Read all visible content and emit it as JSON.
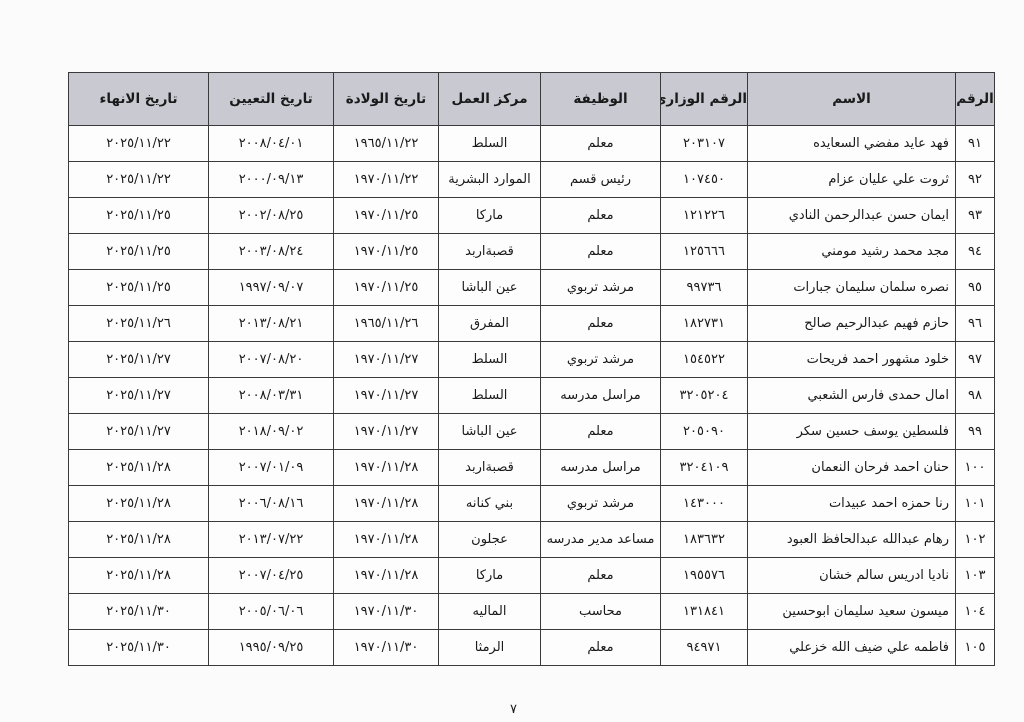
{
  "table": {
    "headers": [
      "الرقم",
      "الاسم",
      "الرقم الوزاري",
      "الوظيفة",
      "مركز العمل",
      "تاريخ الولادة",
      "تاريخ التعيين",
      "تاريخ الانهاء"
    ],
    "rows": [
      [
        "٩١",
        "فهد عايد مفضي السعايده",
        "٢٠٣١٠٧",
        "معلم",
        "السلط",
        "١٩٦٥/١١/٢٢",
        "٢٠٠٨/٠٤/٠١",
        "٢٠٢٥/١١/٢٢"
      ],
      [
        "٩٢",
        "ثروت علي عليان عزام",
        "١٠٧٤٥٠",
        "رئيس قسم",
        "الموارد البشرية",
        "١٩٧٠/١١/٢٢",
        "٢٠٠٠/٠٩/١٣",
        "٢٠٢٥/١١/٢٢"
      ],
      [
        "٩٣",
        "ايمان حسن عبدالرحمن النادي",
        "١٢١٢٢٦",
        "معلم",
        "ماركا",
        "١٩٧٠/١١/٢٥",
        "٢٠٠٢/٠٨/٢٥",
        "٢٠٢٥/١١/٢٥"
      ],
      [
        "٩٤",
        "مجد محمد رشيد مومني",
        "١٢٥٦٦٦",
        "معلم",
        "قصبةاربد",
        "١٩٧٠/١١/٢٥",
        "٢٠٠٣/٠٨/٢٤",
        "٢٠٢٥/١١/٢٥"
      ],
      [
        "٩٥",
        "نصره سلمان سليمان جبارات",
        "٩٩٧٣٦",
        "مرشد تربوي",
        "عين الباشا",
        "١٩٧٠/١١/٢٥",
        "١٩٩٧/٠٩/٠٧",
        "٢٠٢٥/١١/٢٥"
      ],
      [
        "٩٦",
        "حازم فهيم عبدالرحيم صالح",
        "١٨٢٧٣١",
        "معلم",
        "المفرق",
        "١٩٦٥/١١/٢٦",
        "٢٠١٣/٠٨/٢١",
        "٢٠٢٥/١١/٢٦"
      ],
      [
        "٩٧",
        "خلود مشهور احمد فريحات",
        "١٥٤٥٢٢",
        "مرشد تربوي",
        "السلط",
        "١٩٧٠/١١/٢٧",
        "٢٠٠٧/٠٨/٢٠",
        "٢٠٢٥/١١/٢٧"
      ],
      [
        "٩٨",
        "امال حمدى فارس الشعبي",
        "٣٢٠٥٢٠٤",
        "مراسل مدرسه",
        "السلط",
        "١٩٧٠/١١/٢٧",
        "٢٠٠٨/٠٣/٣١",
        "٢٠٢٥/١١/٢٧"
      ],
      [
        "٩٩",
        "فلسطين يوسف حسين سكر",
        "٢٠٥٠٩٠",
        "معلم",
        "عين الباشا",
        "١٩٧٠/١١/٢٧",
        "٢٠١٨/٠٩/٠٢",
        "٢٠٢٥/١١/٢٧"
      ],
      [
        "١٠٠",
        "حنان احمد فرحان النعمان",
        "٣٢٠٤١٠٩",
        "مراسل مدرسه",
        "قصبةاربد",
        "١٩٧٠/١١/٢٨",
        "٢٠٠٧/٠١/٠٩",
        "٢٠٢٥/١١/٢٨"
      ],
      [
        "١٠١",
        "رنا حمزه احمد عبيدات",
        "١٤٣٠٠٠",
        "مرشد تربوي",
        "بني كنانه",
        "١٩٧٠/١١/٢٨",
        "٢٠٠٦/٠٨/١٦",
        "٢٠٢٥/١١/٢٨"
      ],
      [
        "١٠٢",
        "رهام عبدالله عبدالحافظ العبود",
        "١٨٣٦٣٢",
        "مساعد مدير مدرسه",
        "عجلون",
        "١٩٧٠/١١/٢٨",
        "٢٠١٣/٠٧/٢٢",
        "٢٠٢٥/١١/٢٨"
      ],
      [
        "١٠٣",
        "ناديا ادريس سالم خشان",
        "١٩٥٥٧٦",
        "معلم",
        "ماركا",
        "١٩٧٠/١١/٢٨",
        "٢٠٠٧/٠٤/٢٥",
        "٢٠٢٥/١١/٢٨"
      ],
      [
        "١٠٤",
        "ميسون سعيد سليمان ابوحسين",
        "١٣١٨٤١",
        "محاسب",
        "الماليه",
        "١٩٧٠/١١/٣٠",
        "٢٠٠٥/٠٦/٠٦",
        "٢٠٢٥/١١/٣٠"
      ],
      [
        "١٠٥",
        "فاطمه علي ضيف الله خزعلي",
        "٩٤٩٧١",
        "معلم",
        "الرمثا",
        "١٩٧٠/١١/٣٠",
        "١٩٩٥/٠٩/٢٥",
        "٢٠٢٥/١١/٣٠"
      ]
    ]
  },
  "page_number": "٧",
  "colors": {
    "header_bg": "#c9c9d2",
    "border": "#3a3a3a"
  }
}
